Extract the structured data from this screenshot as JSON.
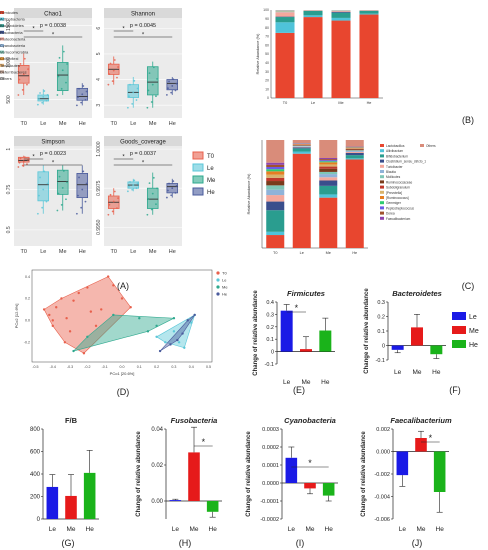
{
  "panel_letters": [
    "(A)",
    "(B)",
    "(C)",
    "(D)",
    "(E)",
    "(F)",
    "(G)",
    "(H)",
    "(I)",
    "(J)"
  ],
  "colors": {
    "T0": "#e8604c",
    "Le": "#5bc7d8",
    "Me": "#2ea88e",
    "He": "#4a5b9c",
    "bar_Le": "#1a1ae6",
    "bar_Me": "#e61a1a",
    "bar_He": "#1ab31a"
  },
  "boxplot_legend": [
    "T0",
    "Le",
    "Me",
    "He"
  ],
  "bar_legend": [
    "Le",
    "Me",
    "He"
  ],
  "chart_data": [
    {
      "id": "A1",
      "type": "boxplot",
      "title": "Chao1",
      "pvalue": "p = 0.0038",
      "ylim": [
        250,
        1600
      ],
      "yticks": [
        500,
        1000,
        1500
      ],
      "categories": [
        "T0",
        "Le",
        "Me",
        "He"
      ],
      "boxes": [
        {
          "group": "T0",
          "q1": 720,
          "median": 820,
          "q3": 960,
          "wmin": 560,
          "wmax": 1120
        },
        {
          "group": "Le",
          "q1": 480,
          "median": 510,
          "q3": 560,
          "wmin": 430,
          "wmax": 640
        },
        {
          "group": "Me",
          "q1": 620,
          "median": 830,
          "q3": 1000,
          "wmin": 560,
          "wmax": 1230
        },
        {
          "group": "He",
          "q1": 490,
          "median": 540,
          "q3": 650,
          "wmin": 420,
          "wmax": 720
        }
      ],
      "sig": [
        {
          "from": "T0",
          "to": "Le",
          "label": "*"
        },
        {
          "from": "T0",
          "to": "He",
          "label": "*"
        }
      ]
    },
    {
      "id": "A2",
      "type": "boxplot",
      "title": "Shannon",
      "pvalue": "p = 0.0045",
      "ylim": [
        2.5,
        6.4
      ],
      "yticks": [
        3,
        4,
        5,
        6
      ],
      "categories": [
        "T0",
        "Le",
        "Me",
        "He"
      ],
      "boxes": [
        {
          "group": "T0",
          "q1": 4.2,
          "median": 4.4,
          "q3": 4.6,
          "wmin": 3.8,
          "wmax": 4.9
        },
        {
          "group": "Le",
          "q1": 3.3,
          "median": 3.5,
          "q3": 3.8,
          "wmin": 2.9,
          "wmax": 4.1
        },
        {
          "group": "Me",
          "q1": 3.4,
          "median": 3.9,
          "q3": 4.5,
          "wmin": 2.9,
          "wmax": 4.7
        },
        {
          "group": "He",
          "q1": 3.6,
          "median": 3.85,
          "q3": 4.0,
          "wmin": 3.4,
          "wmax": 4.1
        }
      ],
      "sig": [
        {
          "from": "T0",
          "to": "Le",
          "label": "*"
        },
        {
          "from": "T0",
          "to": "He",
          "label": "*"
        }
      ]
    },
    {
      "id": "A3",
      "type": "boxplot",
      "title": "Simpson",
      "pvalue": "p = 0.0023",
      "ylim": [
        0.4,
        1.02
      ],
      "yticks": [
        0.5,
        0.75,
        1.0
      ],
      "categories": [
        "T0",
        "Le",
        "Me",
        "He"
      ],
      "boxes": [
        {
          "group": "T0",
          "q1": 0.92,
          "median": 0.93,
          "q3": 0.95,
          "wmin": 0.89,
          "wmax": 0.96
        },
        {
          "group": "Le",
          "q1": 0.68,
          "median": 0.78,
          "q3": 0.86,
          "wmin": 0.6,
          "wmax": 0.9
        },
        {
          "group": "Me",
          "q1": 0.72,
          "median": 0.8,
          "q3": 0.87,
          "wmin": 0.62,
          "wmax": 0.9
        },
        {
          "group": "He",
          "q1": 0.7,
          "median": 0.78,
          "q3": 0.85,
          "wmin": 0.6,
          "wmax": 0.9
        }
      ],
      "sig": [
        {
          "from": "T0",
          "to": "Le",
          "label": "*"
        },
        {
          "from": "T0",
          "to": "He",
          "label": "*"
        }
      ]
    },
    {
      "id": "A4",
      "type": "boxplot",
      "title": "Goods_coverage",
      "pvalue": "p = 0.0037",
      "ylim": [
        0.9938,
        1.0002
      ],
      "yticks": [
        0.995,
        0.9975,
        1.0
      ],
      "ytick_labels": [
        "0.9950",
        "0.9975",
        "1.0000"
      ],
      "categories": [
        "T0",
        "Le",
        "Me",
        "He"
      ],
      "boxes": [
        {
          "group": "T0",
          "q1": 0.9962,
          "median": 0.9966,
          "q3": 0.997,
          "wmin": 0.9958,
          "wmax": 0.9975
        },
        {
          "group": "Le",
          "q1": 0.9975,
          "median": 0.9977,
          "q3": 0.9979,
          "wmin": 0.9973,
          "wmax": 0.9981
        },
        {
          "group": "Me",
          "q1": 0.9962,
          "median": 0.9968,
          "q3": 0.9975,
          "wmin": 0.9958,
          "wmax": 0.9985
        },
        {
          "group": "He",
          "q1": 0.9972,
          "median": 0.9976,
          "q3": 0.9978,
          "wmin": 0.9969,
          "wmax": 0.9981
        }
      ],
      "sig": [
        {
          "from": "T0",
          "to": "Le",
          "label": "*"
        },
        {
          "from": "T0",
          "to": "He",
          "label": "*"
        }
      ]
    },
    {
      "id": "B",
      "type": "bar",
      "stacked": true,
      "ylabel": "Relative Abundance (%)",
      "ylim": [
        0,
        100
      ],
      "yticks": [
        0,
        10,
        20,
        30,
        40,
        50,
        60,
        70,
        80,
        90,
        100
      ],
      "categories": [
        "T0",
        "Le",
        "Me",
        "He"
      ],
      "series": [
        {
          "name": "Firmicutes",
          "color": "#e8462f",
          "values": [
            74,
            92,
            88,
            95
          ]
        },
        {
          "name": "Actinobacteria",
          "color": "#4fc3d9",
          "values": [
            12,
            2,
            3,
            1
          ]
        },
        {
          "name": "Bacteroidetes",
          "color": "#2a9d8f",
          "values": [
            6,
            5,
            6,
            3
          ]
        },
        {
          "name": "Fusobacteria",
          "color": "#3a4e8c",
          "values": [
            0.5,
            0.2,
            1,
            0.3
          ]
        },
        {
          "name": "Proteobacteria",
          "color": "#f4a89c",
          "values": [
            5,
            0.5,
            1,
            0.5
          ]
        },
        {
          "name": "Cyanobacteria",
          "color": "#8fb3d9",
          "values": [
            0.3,
            0.1,
            0.2,
            0.1
          ]
        },
        {
          "name": "Verrucomicrobia",
          "color": "#7fc6b6",
          "values": [
            0.5,
            0.1,
            0.3,
            0.1
          ]
        },
        {
          "name": "Chloroflexi",
          "color": "#d98c2b",
          "values": [
            0.2,
            0.05,
            0.1,
            0.05
          ]
        },
        {
          "name": "Tenericutes",
          "color": "#d9a86b",
          "values": [
            0.3,
            0.05,
            0.1,
            0.05
          ]
        },
        {
          "name": "Deferribacteres",
          "color": "#b89a8a",
          "values": [
            0.2,
            0.05,
            0.1,
            0.05
          ]
        },
        {
          "name": "Others",
          "color": "#b5b5b5",
          "values": [
            1,
            0,
            0.2,
            0
          ]
        }
      ]
    },
    {
      "id": "C",
      "type": "bar",
      "stacked": true,
      "ylabel": "Relative Abundance (%)",
      "ylim": [
        0,
        100
      ],
      "categories": [
        "T0",
        "Le",
        "Me",
        "He"
      ],
      "series": [
        {
          "name": "Lactobacillus",
          "color": "#e8462f",
          "values": [
            12,
            88,
            47,
            82
          ]
        },
        {
          "name": "Aliivibactum",
          "color": "#4fc3d9",
          "values": [
            3,
            2,
            3,
            1
          ]
        },
        {
          "name": "Bifidobacterium",
          "color": "#2a9d8f",
          "values": [
            20,
            3,
            8,
            3
          ]
        },
        {
          "name": "Clostridium_sensu_stricto_1",
          "color": "#3a4e8c",
          "values": [
            8,
            1,
            5,
            2
          ]
        },
        {
          "name": "Turicibacter",
          "color": "#f4a89c",
          "values": [
            6,
            0.5,
            3,
            1
          ]
        },
        {
          "name": "Blautia",
          "color": "#8fb3d9",
          "values": [
            5,
            0.5,
            3,
            1
          ]
        },
        {
          "name": "Mollicutes",
          "color": "#7fc6b6",
          "values": [
            4,
            0.5,
            2,
            0.5
          ]
        },
        {
          "name": "Ruminococcaceae",
          "color": "#7a3a1a",
          "values": [
            4,
            0.5,
            3,
            1
          ]
        },
        {
          "name": "Subdoligranulum",
          "color": "#c0392b",
          "values": [
            3,
            0.5,
            2,
            0.5
          ]
        },
        {
          "name": "[Prevotella]",
          "color": "#d9b36b",
          "values": [
            3,
            0.3,
            2,
            0.5
          ]
        },
        {
          "name": "[Ruminococcus]",
          "color": "#e67e22",
          "values": [
            3,
            0.3,
            2,
            0.5
          ]
        },
        {
          "name": "Gemmiger",
          "color": "#2ecc71",
          "values": [
            2,
            0.2,
            1,
            0.3
          ]
        },
        {
          "name": "Peptostreptococcus",
          "color": "#6c5ce7",
          "values": [
            2,
            0.2,
            1,
            0.3
          ]
        },
        {
          "name": "Dorea",
          "color": "#a0522d",
          "values": [
            2,
            0.2,
            1,
            0.3
          ]
        },
        {
          "name": "Faecalibacterium",
          "color": "#8e44ad",
          "values": [
            2,
            0.2,
            1,
            0.3
          ]
        },
        {
          "name": "Others",
          "color": "#d98c7a",
          "values": [
            21,
            2.9,
            16.8,
            5.8
          ]
        }
      ]
    },
    {
      "id": "D",
      "type": "scatter",
      "xlabel": "PCo1 [20.6%]",
      "ylabel": "PCo2 [12.6%]",
      "xlim": [
        -0.52,
        0.52
      ],
      "ylim": [
        -0.38,
        0.46
      ],
      "xticks": [
        -0.5,
        -0.4,
        -0.3,
        -0.2,
        -0.1,
        0.0,
        0.1,
        0.2,
        0.3,
        0.4,
        0.5
      ],
      "yticks": [
        -0.2,
        0.0,
        0.2,
        0.4
      ],
      "legend": [
        "T0",
        "Le",
        "Me",
        "He"
      ],
      "series": [
        {
          "name": "T0",
          "points": [
            [
              -0.45,
              0.1
            ],
            [
              -0.42,
              0.05
            ],
            [
              -0.4,
              -0.05
            ],
            [
              -0.38,
              0.12
            ],
            [
              -0.35,
              0.2
            ],
            [
              -0.32,
              0.02
            ],
            [
              -0.3,
              -0.1
            ],
            [
              -0.28,
              0.18
            ],
            [
              -0.25,
              0.25
            ],
            [
              -0.2,
              0.3
            ],
            [
              -0.18,
              0.08
            ],
            [
              -0.15,
              -0.05
            ],
            [
              -0.12,
              0.1
            ],
            [
              -0.08,
              0.4
            ],
            [
              -0.05,
              0.32
            ],
            [
              0.0,
              0.2
            ],
            [
              0.05,
              0.12
            ],
            [
              -0.33,
              -0.2
            ],
            [
              -0.22,
              -0.3
            ],
            [
              -0.4,
              0.0
            ]
          ]
        },
        {
          "name": "Le",
          "points": [
            [
              0.2,
              -0.15
            ],
            [
              0.25,
              -0.2
            ],
            [
              0.3,
              -0.1
            ],
            [
              0.33,
              -0.2
            ],
            [
              0.36,
              -0.25
            ],
            [
              0.4,
              -0.02
            ],
            [
              0.42,
              0.05
            ],
            [
              0.38,
              0.0
            ]
          ]
        },
        {
          "name": "Me",
          "points": [
            [
              -0.28,
              -0.28
            ],
            [
              -0.2,
              -0.15
            ],
            [
              -0.05,
              0.05
            ],
            [
              0.1,
              0.02
            ],
            [
              0.2,
              -0.05
            ],
            [
              0.3,
              0.02
            ],
            [
              0.15,
              -0.1
            ]
          ]
        },
        {
          "name": "He",
          "points": [
            [
              0.22,
              -0.28
            ],
            [
              0.28,
              -0.22
            ],
            [
              0.35,
              -0.12
            ],
            [
              0.38,
              0.0
            ],
            [
              0.42,
              0.05
            ],
            [
              0.32,
              -0.18
            ]
          ]
        }
      ]
    },
    {
      "id": "E",
      "type": "bar",
      "title": "Firmicutes",
      "ylabel": "Change of relative abundance",
      "ylim": [
        -0.1,
        0.4
      ],
      "yticks": [
        -0.1,
        0.0,
        0.1,
        0.2,
        0.3,
        0.4
      ],
      "categories": [
        "Le",
        "Me",
        "He"
      ],
      "values": [
        0.33,
        0.02,
        0.17
      ],
      "errors": [
        0.05,
        0.1,
        0.1
      ],
      "sig": [
        {
          "from": "Le",
          "to": "Me",
          "label": "*"
        }
      ]
    },
    {
      "id": "F",
      "type": "bar",
      "title": "Bacteroidetes",
      "ylabel": "Change of relative abundance",
      "ylim": [
        -0.1,
        0.3
      ],
      "yticks": [
        -0.1,
        0.0,
        0.1,
        0.2,
        0.3
      ],
      "categories": [
        "Le",
        "Me",
        "He"
      ],
      "values": [
        -0.03,
        0.125,
        -0.06
      ],
      "errors": [
        0.02,
        0.09,
        0.03
      ]
    },
    {
      "id": "G",
      "type": "bar",
      "title": "F/B",
      "ylim": [
        0,
        800
      ],
      "yticks": [
        0,
        200,
        400,
        600,
        800
      ],
      "categories": [
        "Le",
        "Me",
        "He"
      ],
      "values": [
        285,
        205,
        410
      ],
      "errors": [
        110,
        190,
        200
      ]
    },
    {
      "id": "H",
      "type": "bar",
      "title": "Fusobacteria",
      "ylabel": "Change of relative abundance",
      "ylim": [
        -0.01,
        0.04
      ],
      "yticks": [
        0.0,
        0.02,
        0.04
      ],
      "ytick_labels": [
        "0.00",
        "0.02",
        "0.04"
      ],
      "categories": [
        "Le",
        "Me",
        "He"
      ],
      "values": [
        0.0005,
        0.027,
        -0.006
      ],
      "errors": [
        0.0005,
        0.014,
        0.003
      ],
      "sig": [
        {
          "from": "Me",
          "to": "He",
          "label": "*"
        }
      ]
    },
    {
      "id": "I",
      "type": "bar",
      "title": "Cyanobacteria",
      "ylabel": "Change of relative abundance",
      "ylim": [
        -0.0002,
        0.0003
      ],
      "yticks": [
        -0.0002,
        -0.0001,
        0.0,
        0.0001,
        0.0002,
        0.0003
      ],
      "ytick_labels": [
        "-0.0002",
        "-0.0001",
        "0.0000",
        "0.0001",
        "0.0002",
        "0.0003"
      ],
      "categories": [
        "Le",
        "Me",
        "He"
      ],
      "values": [
        0.00014,
        -3e-05,
        -7e-05
      ],
      "errors": [
        6e-05,
        3e-05,
        3e-05
      ],
      "sig": [
        {
          "from": "Le",
          "to": "He",
          "label": "*"
        }
      ]
    },
    {
      "id": "J",
      "type": "bar",
      "title": "Faecalibacterium",
      "ylabel": "Change of relative abundance",
      "ylim": [
        -0.006,
        0.002
      ],
      "yticks": [
        -0.006,
        -0.004,
        -0.002,
        0.0,
        0.002
      ],
      "ytick_labels": [
        "-0.006",
        "-0.004",
        "-0.002",
        "0.000",
        "0.002"
      ],
      "categories": [
        "Le",
        "Me",
        "He"
      ],
      "values": [
        -0.0021,
        0.0012,
        -0.0036
      ],
      "errors": [
        0.001,
        0.0006,
        0.0018
      ],
      "sig": [
        {
          "from": "Me",
          "to": "He",
          "label": "*"
        }
      ]
    }
  ]
}
